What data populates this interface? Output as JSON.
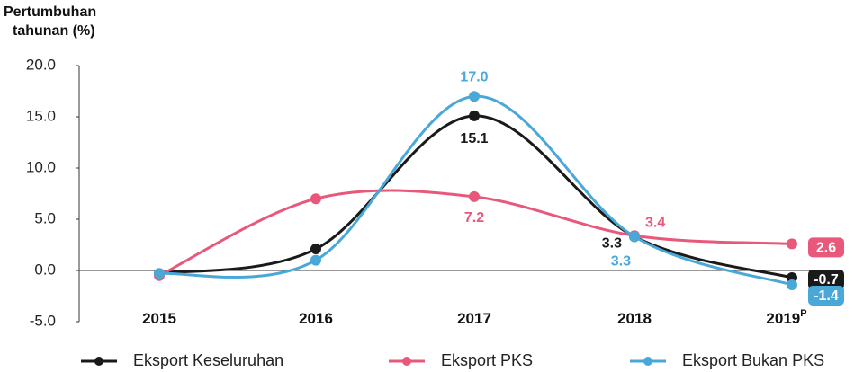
{
  "chart_data": {
    "type": "line",
    "ylabel": [
      "Pertumbuhan",
      "tahunan (%)"
    ],
    "categories": [
      "2015",
      "2016",
      "2017",
      "2018",
      "2019"
    ],
    "x_note": "P",
    "series": [
      {
        "name": "Eksport Keseluruhan",
        "color": "#1a1a1a",
        "values": [
          -0.3,
          2.1,
          15.1,
          3.3,
          -0.7
        ],
        "value_labels": [
          null,
          null,
          "15.1",
          "3.3",
          "-0.7"
        ]
      },
      {
        "name": "Eksport PKS",
        "color": "#e8587a",
        "values": [
          -0.5,
          7.0,
          7.2,
          3.4,
          2.6
        ],
        "value_labels": [
          null,
          null,
          "7.2",
          "3.4",
          "2.6"
        ]
      },
      {
        "name": "Eksport Bukan PKS",
        "color": "#4aa8d8",
        "values": [
          -0.3,
          1.0,
          17.0,
          3.3,
          -1.4
        ],
        "value_labels": [
          null,
          null,
          "17.0",
          "3.3",
          "-1.4"
        ]
      }
    ],
    "ylim": [
      -5,
      20
    ],
    "yticks": [
      {
        "value": -5,
        "label": "-5.0"
      },
      {
        "value": 0,
        "label": "0.0"
      },
      {
        "value": 5,
        "label": "5.0"
      },
      {
        "value": 10,
        "label": "10.0"
      },
      {
        "value": 15,
        "label": "15.0"
      },
      {
        "value": 20,
        "label": "20.0"
      }
    ],
    "legend": "bottom"
  }
}
